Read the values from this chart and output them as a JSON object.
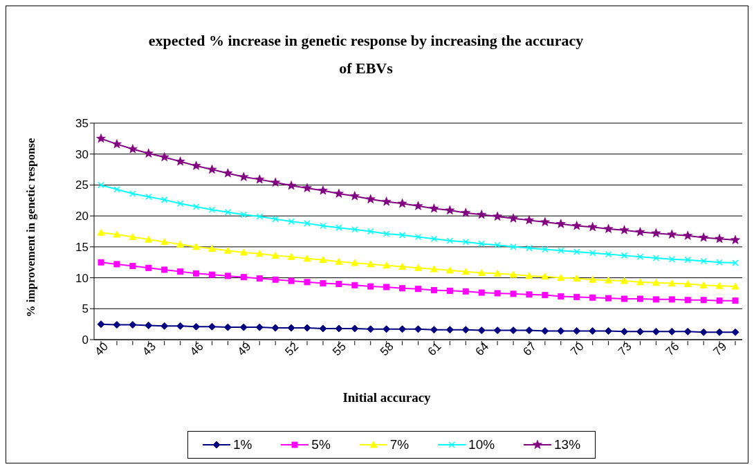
{
  "chart_data": {
    "type": "line",
    "title": "expected % increase in genetic response by increasing the accuracy of EBVs",
    "xlabel": "Initial accuracy",
    "ylabel": "% improvement in genetic response",
    "categories": [
      "40",
      null,
      null,
      "43",
      null,
      null,
      "46",
      null,
      null,
      "49",
      null,
      null,
      "52",
      null,
      null,
      "55",
      null,
      null,
      "58",
      null,
      null,
      "61",
      null,
      null,
      "64",
      null,
      null,
      "67",
      null,
      null,
      "70",
      null,
      null,
      "73",
      null,
      null,
      "76",
      null,
      null,
      "79",
      null
    ],
    "series": [
      {
        "name": "1%",
        "color": "#000080",
        "marker": "diamond",
        "values": [
          2.5,
          2.4,
          2.4,
          2.3,
          2.2,
          2.2,
          2.1,
          2.1,
          2.0,
          2.0,
          2.0,
          1.9,
          1.9,
          1.9,
          1.8,
          1.8,
          1.8,
          1.7,
          1.7,
          1.7,
          1.7,
          1.6,
          1.6,
          1.6,
          1.5,
          1.5,
          1.5,
          1.5,
          1.4,
          1.4,
          1.4,
          1.4,
          1.4,
          1.3,
          1.3,
          1.3,
          1.3,
          1.3,
          1.2,
          1.2,
          1.2
        ]
      },
      {
        "name": "5%",
        "color": "#ff00ff",
        "marker": "square",
        "values": [
          12.5,
          12.2,
          11.9,
          11.6,
          11.3,
          11.0,
          10.7,
          10.5,
          10.3,
          10.1,
          9.9,
          9.7,
          9.5,
          9.3,
          9.1,
          9.0,
          8.8,
          8.6,
          8.5,
          8.3,
          8.2,
          8.0,
          7.9,
          7.8,
          7.6,
          7.5,
          7.4,
          7.3,
          7.2,
          7.0,
          6.9,
          6.8,
          6.7,
          6.6,
          6.6,
          6.5,
          6.5,
          6.4,
          6.4,
          6.3,
          6.3
        ]
      },
      {
        "name": "7%",
        "color": "#ffff00",
        "marker": "triangle",
        "values": [
          17.3,
          17.0,
          16.6,
          16.2,
          15.8,
          15.4,
          15.0,
          14.7,
          14.4,
          14.1,
          13.9,
          13.6,
          13.4,
          13.1,
          12.9,
          12.6,
          12.4,
          12.2,
          12.0,
          11.8,
          11.6,
          11.4,
          11.2,
          11.0,
          10.8,
          10.7,
          10.5,
          10.3,
          10.2,
          10.0,
          9.9,
          9.7,
          9.6,
          9.5,
          9.3,
          9.2,
          9.1,
          9.0,
          8.8,
          8.7,
          8.6
        ]
      },
      {
        "name": "10%",
        "color": "#00ffff",
        "marker": "cross",
        "values": [
          25.0,
          24.3,
          23.6,
          23.1,
          22.6,
          22.0,
          21.5,
          21.0,
          20.6,
          20.2,
          19.9,
          19.5,
          19.1,
          18.8,
          18.4,
          18.1,
          17.8,
          17.5,
          17.1,
          16.9,
          16.6,
          16.3,
          16.0,
          15.8,
          15.5,
          15.3,
          15.0,
          14.8,
          14.6,
          14.4,
          14.2,
          14.0,
          13.8,
          13.6,
          13.4,
          13.2,
          13.0,
          12.9,
          12.7,
          12.5,
          12.4
        ]
      },
      {
        "name": "13%",
        "color": "#800080",
        "marker": "star",
        "values": [
          32.5,
          31.6,
          30.8,
          30.1,
          29.5,
          28.8,
          28.1,
          27.5,
          26.9,
          26.3,
          25.9,
          25.4,
          24.9,
          24.5,
          24.1,
          23.6,
          23.2,
          22.7,
          22.3,
          22.0,
          21.6,
          21.2,
          20.9,
          20.5,
          20.2,
          19.9,
          19.6,
          19.3,
          19.0,
          18.7,
          18.4,
          18.2,
          17.9,
          17.7,
          17.4,
          17.2,
          17.0,
          16.8,
          16.5,
          16.3,
          16.1
        ]
      }
    ],
    "ylim": [
      0,
      35
    ],
    "yticks": [
      0,
      5,
      10,
      15,
      20,
      25,
      30,
      35
    ],
    "grid": "y",
    "legend": "bottom",
    "line_style": "solid"
  }
}
